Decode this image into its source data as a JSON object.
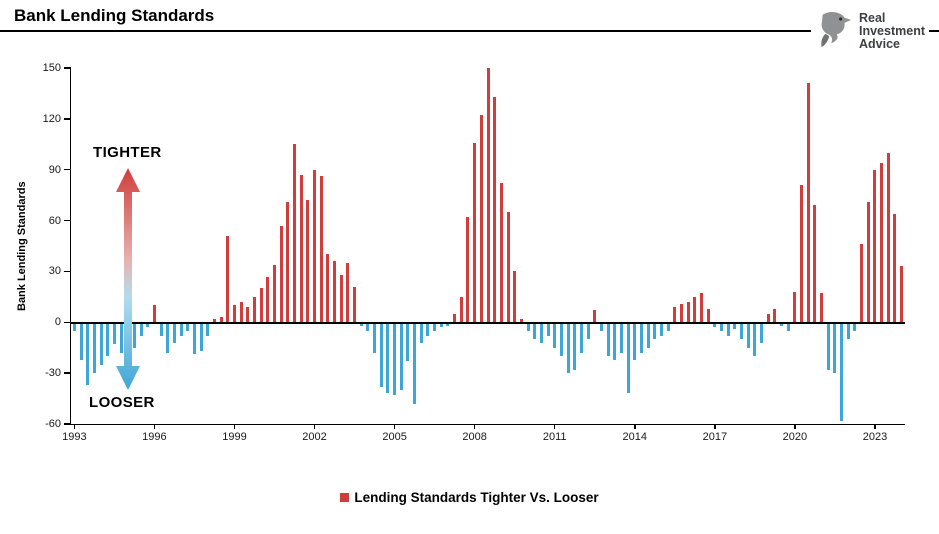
{
  "header": {
    "title": "Bank Lending Standards"
  },
  "logo": {
    "line1": "Real",
    "line2": "Investment",
    "line3": "Advice"
  },
  "annotations": {
    "tighter": "TIGHTER",
    "looser": "LOOSER"
  },
  "legend": {
    "label": "Lending Standards Tighter Vs. Looser",
    "swatch_color": "#cf3e3c"
  },
  "colors": {
    "tighter_red": "#cf3e3c",
    "looser_blue": "#3ea6d7"
  },
  "chart_data": {
    "type": "bar",
    "title": "Bank Lending Standards",
    "ylabel": "Bank Lending Standards",
    "xlabel": "",
    "frequency": "quarterly",
    "x_start": "1993Q1",
    "x_end": "2024Q1",
    "ylim": [
      -60,
      150
    ],
    "yticks": [
      150,
      120,
      90,
      60,
      30,
      0,
      -30,
      -60
    ],
    "xtick_years": [
      1993,
      1996,
      1999,
      2002,
      2005,
      2008,
      2011,
      2014,
      2017,
      2020,
      2023
    ],
    "grid": false,
    "legend_position": "bottom",
    "series_name": "Lending Standards Tighter Vs. Looser",
    "values": [
      -5,
      -22,
      -37,
      -30,
      -25,
      -20,
      -13,
      -18,
      -20,
      -15,
      -8,
      -3,
      10,
      -8,
      -18,
      -12,
      -8,
      -5,
      -19,
      -17,
      -8,
      2,
      3,
      51,
      10,
      12,
      9,
      15,
      20,
      27,
      34,
      57,
      71,
      105,
      87,
      72,
      90,
      86,
      40,
      36,
      28,
      35,
      21,
      -2,
      -5,
      -18,
      -38,
      -42,
      -43,
      -40,
      -23,
      -48,
      -12,
      -8,
      -5,
      -3,
      -2,
      5,
      15,
      62,
      106,
      122,
      150,
      133,
      82,
      65,
      30,
      2,
      -5,
      -10,
      -12,
      -8,
      -15,
      -20,
      -30,
      -28,
      -18,
      -10,
      7,
      -5,
      -20,
      -22,
      -18,
      -42,
      -22,
      -18,
      -15,
      -10,
      -8,
      -5,
      9,
      11,
      12,
      15,
      17,
      8,
      -3,
      -5,
      -8,
      -4,
      -10,
      -15,
      -20,
      -12,
      5,
      8,
      -2,
      -5,
      18,
      81,
      141,
      69,
      17,
      -28,
      -30,
      -58,
      -10,
      -5,
      46,
      71,
      90,
      94,
      100,
      64,
      33
    ]
  }
}
